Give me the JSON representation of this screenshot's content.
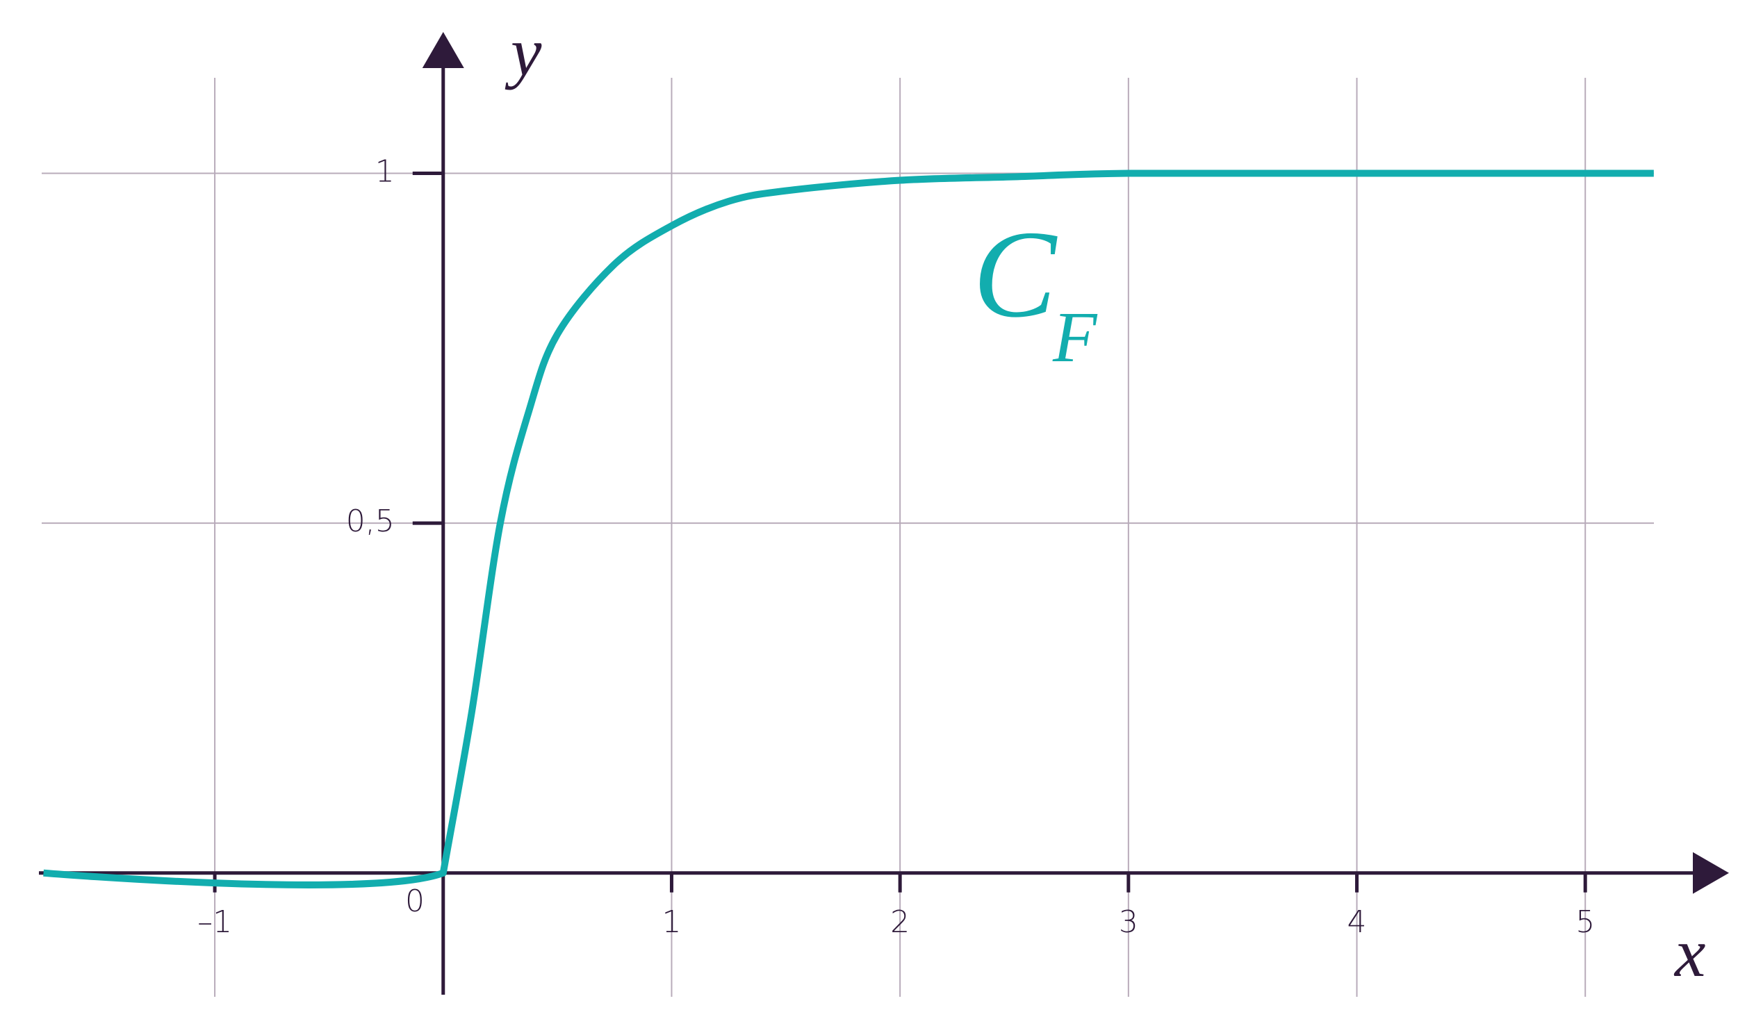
{
  "chart_data": {
    "type": "line",
    "x": [
      -1.75,
      0,
      0.125,
      0.25,
      0.375,
      0.5,
      0.75,
      1,
      1.25,
      1.5,
      2,
      2.5,
      3,
      4,
      5.3
    ],
    "series": [
      {
        "color": "#12adae",
        "values": [
          0,
          0,
          0.23,
          0.5,
          0.66,
          0.77,
          0.87,
          0.925,
          0.96,
          0.975,
          0.99,
          0.995,
          1,
          1,
          1
        ]
      }
    ],
    "xlim": [
      -1.77,
      5.62
    ],
    "ylim": [
      -0.174,
      1.2
    ],
    "xticks": [
      {
        "value": -1,
        "label": "–1"
      },
      1,
      2,
      3,
      4,
      5
    ],
    "yticks": [
      {
        "value": 0.5,
        "label": "0,5"
      },
      1
    ],
    "origin_label": "0",
    "x_label": "x",
    "y_label": "y",
    "annotation": {
      "text": "C",
      "subscript": "F"
    },
    "grid": true
  }
}
